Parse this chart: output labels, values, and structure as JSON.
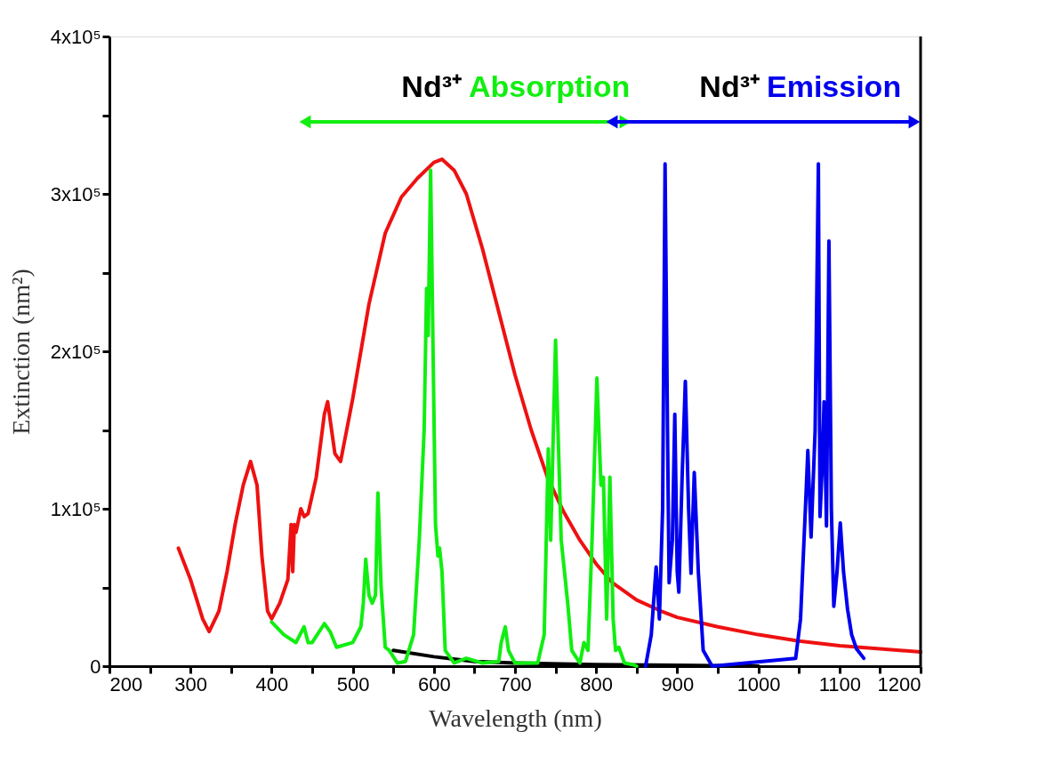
{
  "chart_data": {
    "type": "line",
    "xlabel": "Wavelength (nm)",
    "ylabel": "Extinction (nm²)",
    "xlim": [
      200,
      1200
    ],
    "ylim": [
      0,
      400000
    ],
    "xticks": [
      200,
      {
        "value": 250,
        "label": null
      },
      300,
      {
        "value": 350,
        "label": null
      },
      400,
      {
        "value": 450,
        "label": null
      },
      500,
      {
        "value": 550,
        "label": null
      },
      600,
      {
        "value": 650,
        "label": null
      },
      700,
      {
        "value": 750,
        "label": null
      },
      800,
      {
        "value": 850,
        "label": null
      },
      900,
      {
        "value": 950,
        "label": null
      },
      1000,
      {
        "value": 1050,
        "label": null
      },
      1100,
      {
        "value": 1150,
        "label": null
      },
      1200
    ],
    "yticks": [
      0,
      {
        "value": 50000,
        "label": null
      },
      {
        "value": 100000,
        "label": "1x10⁵"
      },
      {
        "value": 150000,
        "label": null
      },
      {
        "value": 200000,
        "label": "2x10⁵"
      },
      {
        "value": 250000,
        "label": null
      },
      {
        "value": 300000,
        "label": "3x10⁵"
      },
      {
        "value": 350000,
        "label": null
      },
      {
        "value": 400000,
        "label": "4x10⁵"
      }
    ],
    "grid": false,
    "marker": "none",
    "line_style": "solid",
    "series": [
      {
        "color": "#000000",
        "x": [
          550,
          600,
          650,
          700,
          800,
          900,
          1000
        ],
        "values": [
          10000,
          6000,
          3000,
          2000,
          1000,
          500,
          0
        ]
      },
      {
        "color": "#ee1111",
        "x": [
          285,
          300,
          315,
          323,
          335,
          345,
          355,
          365,
          374,
          382,
          388,
          395,
          400,
          410,
          420,
          424,
          426,
          428,
          430,
          436,
          440,
          445,
          455,
          465,
          469,
          478,
          485,
          500,
          520,
          540,
          560,
          580,
          600,
          610,
          625,
          640,
          660,
          680,
          700,
          720,
          740,
          760,
          780,
          800,
          820,
          850,
          880,
          900,
          950,
          1000,
          1050,
          1100,
          1150,
          1200
        ],
        "values": [
          75000,
          55000,
          30000,
          22000,
          35000,
          60000,
          90000,
          115000,
          130000,
          115000,
          70000,
          35000,
          30000,
          40000,
          55000,
          90000,
          60000,
          90000,
          85000,
          100000,
          95000,
          97000,
          120000,
          160000,
          168000,
          135000,
          130000,
          170000,
          230000,
          275000,
          298000,
          310000,
          320000,
          322000,
          315000,
          300000,
          265000,
          225000,
          185000,
          150000,
          120000,
          98000,
          80000,
          65000,
          53000,
          42000,
          35000,
          31000,
          25000,
          20000,
          16000,
          13000,
          11000,
          9000
        ]
      },
      {
        "color": "#11ee11",
        "x": [
          400,
          415,
          430,
          440,
          445,
          450,
          465,
          472,
          480,
          500,
          510,
          513,
          516,
          520,
          524,
          528,
          531,
          535,
          540,
          545,
          555,
          565,
          575,
          582,
          588,
          591,
          593,
          596,
          599,
          602,
          605,
          607,
          610,
          614,
          625,
          640,
          660,
          680,
          683,
          688,
          692,
          700,
          728,
          736,
          741,
          744,
          750,
          753,
          757,
          760,
          765,
          770,
          780,
          785,
          790,
          795,
          801,
          806,
          809,
          813,
          817,
          821,
          824,
          828,
          835,
          845,
          850
        ],
        "values": [
          28000,
          20000,
          15000,
          25000,
          15000,
          15000,
          27000,
          22000,
          12000,
          15000,
          25000,
          40000,
          68000,
          45000,
          40000,
          45000,
          110000,
          50000,
          12000,
          10000,
          2000,
          3000,
          20000,
          80000,
          150000,
          240000,
          210000,
          315000,
          200000,
          90000,
          70000,
          75000,
          60000,
          10000,
          2000,
          5000,
          2000,
          3000,
          15000,
          25000,
          10000,
          2000,
          2000,
          20000,
          138000,
          80000,
          207000,
          150000,
          80000,
          65000,
          40000,
          10000,
          2000,
          15000,
          10000,
          80000,
          183000,
          115000,
          120000,
          30000,
          120000,
          30000,
          10000,
          12000,
          2000,
          1000,
          0
        ]
      },
      {
        "color": "#0000ee",
        "x": [
          861,
          868,
          874,
          878,
          882,
          885,
          888,
          890,
          894,
          897,
          900,
          902,
          906,
          910,
          914,
          917,
          921,
          926,
          932,
          943,
          1046,
          1052,
          1058,
          1061,
          1065,
          1070,
          1074,
          1076,
          1079,
          1081,
          1084,
          1087,
          1090,
          1093,
          1097,
          1101,
          1105,
          1110,
          1115,
          1121,
          1130
        ],
        "values": [
          0,
          20000,
          63000,
          30000,
          100000,
          319000,
          150000,
          53000,
          80000,
          160000,
          60000,
          47000,
          120000,
          181000,
          100000,
          59000,
          123000,
          60000,
          10000,
          0,
          5000,
          30000,
          100000,
          137000,
          82000,
          150000,
          319000,
          95000,
          130000,
          168000,
          89000,
          270000,
          100000,
          38000,
          60000,
          91000,
          60000,
          36000,
          20000,
          11000,
          5000
        ]
      }
    ],
    "annotations": [
      "Nd³⁺ Absorption",
      "Nd³⁺ Emission"
    ]
  }
}
